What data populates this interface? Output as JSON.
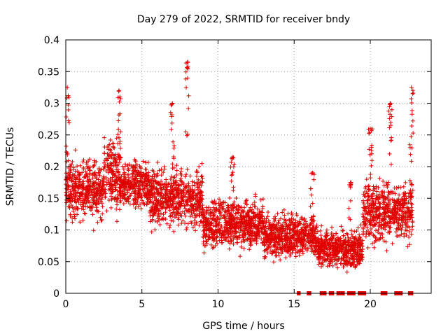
{
  "chart_data": {
    "type": "scatter",
    "title": "Day 279 of 2022, SRMTID for receiver bndy",
    "xlabel": "GPS time / hours",
    "ylabel": "SRMTID / TECUs",
    "xlim": [
      0,
      24
    ],
    "ylim": [
      0,
      0.4
    ],
    "x_ticks": [
      0,
      5,
      10,
      15,
      20
    ],
    "x_tick_labels": [
      "0",
      "5",
      "10",
      "15",
      "20"
    ],
    "y_ticks": [
      0,
      0.05,
      0.1,
      0.15,
      0.2,
      0.25,
      0.3,
      0.35,
      0.4
    ],
    "y_tick_labels": [
      "0",
      "0.05",
      "0.1",
      "0.15",
      "0.2",
      "0.25",
      "0.3",
      "0.35",
      "0.4"
    ],
    "grid": true,
    "marker": "+",
    "marker_color": "#e00000",
    "series": [
      {
        "name": "SRMTID",
        "segments": [
          {
            "x_start": 0.0,
            "x_end": 2.5,
            "y_mean": 0.165,
            "y_spread": 0.055
          },
          {
            "x_start": 2.5,
            "x_end": 3.6,
            "y_mean": 0.19,
            "y_spread": 0.07
          },
          {
            "x_start": 3.6,
            "x_end": 5.5,
            "y_mean": 0.17,
            "y_spread": 0.045
          },
          {
            "x_start": 5.5,
            "x_end": 9.0,
            "y_mean": 0.15,
            "y_spread": 0.055
          },
          {
            "x_start": 9.0,
            "x_end": 13.0,
            "y_mean": 0.11,
            "y_spread": 0.045
          },
          {
            "x_start": 13.0,
            "x_end": 16.5,
            "y_mean": 0.09,
            "y_spread": 0.04
          },
          {
            "x_start": 16.5,
            "x_end": 19.5,
            "y_mean": 0.07,
            "y_spread": 0.035
          },
          {
            "x_start": 19.5,
            "x_end": 22.8,
            "y_mean": 0.13,
            "y_spread": 0.06
          }
        ],
        "peaks": [
          {
            "x": 0.1,
            "ymax": 0.325
          },
          {
            "x": 3.5,
            "ymax": 0.32
          },
          {
            "x": 7.0,
            "ymax": 0.3
          },
          {
            "x": 8.0,
            "ymax": 0.365
          },
          {
            "x": 10.95,
            "ymax": 0.215
          },
          {
            "x": 16.2,
            "ymax": 0.19
          },
          {
            "x": 18.7,
            "ymax": 0.175
          },
          {
            "x": 20.0,
            "ymax": 0.26
          },
          {
            "x": 21.3,
            "ymax": 0.3
          },
          {
            "x": 22.7,
            "ymax": 0.325
          }
        ],
        "zero_runs": [
          [
            15.2,
            15.4
          ],
          [
            15.85,
            16.1
          ],
          [
            16.7,
            17.1
          ],
          [
            17.3,
            17.6
          ],
          [
            17.8,
            18.3
          ],
          [
            18.5,
            19.0
          ],
          [
            19.2,
            19.7
          ],
          [
            20.7,
            21.1
          ],
          [
            21.6,
            22.1
          ],
          [
            22.5,
            22.8
          ]
        ]
      }
    ]
  }
}
